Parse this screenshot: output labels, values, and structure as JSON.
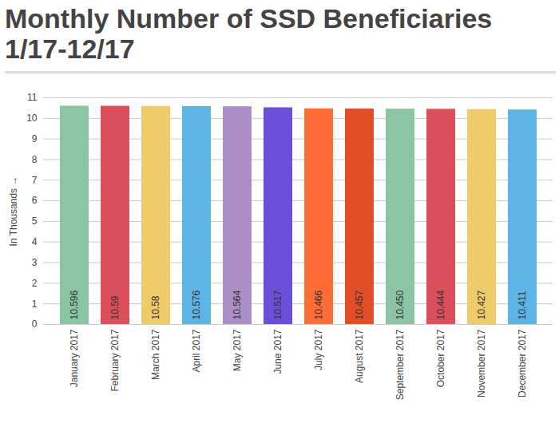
{
  "chart_data": {
    "type": "bar",
    "title": "Monthly Number of SSD Beneficiaries 1/17-12/17",
    "y_label": "In Thousands",
    "categories": [
      "January 2017",
      "February 2017",
      "March 2017",
      "April 2017",
      "May 2017",
      "June 2017",
      "July 2017",
      "August 2017",
      "September 2017",
      "October 2017",
      "November 2017",
      "December 2017"
    ],
    "values": [
      10.596,
      10.59,
      10.58,
      10.576,
      10.564,
      10.517,
      10.466,
      10.457,
      10.45,
      10.444,
      10.427,
      10.411
    ],
    "value_labels": [
      "10.596",
      "10.59",
      "10.58",
      "10.576",
      "10.564",
      "10.517",
      "10.466",
      "10.457",
      "10.450",
      "10.444",
      "10.427",
      "10.411"
    ],
    "colors": [
      "#8cc5a3",
      "#db4f5a",
      "#f0cb69",
      "#5db5e5",
      "#ac8fc6",
      "#6c4fd9",
      "#ff6d35",
      "#e24e26",
      "#8cc5a3",
      "#db4f5a",
      "#f0cb69",
      "#5db5e5"
    ],
    "ylim": [
      0,
      11
    ],
    "yticks": [
      0,
      1,
      2,
      3,
      4,
      5,
      6,
      7,
      8,
      9,
      10,
      11
    ],
    "grid": true,
    "data_labels": true
  }
}
